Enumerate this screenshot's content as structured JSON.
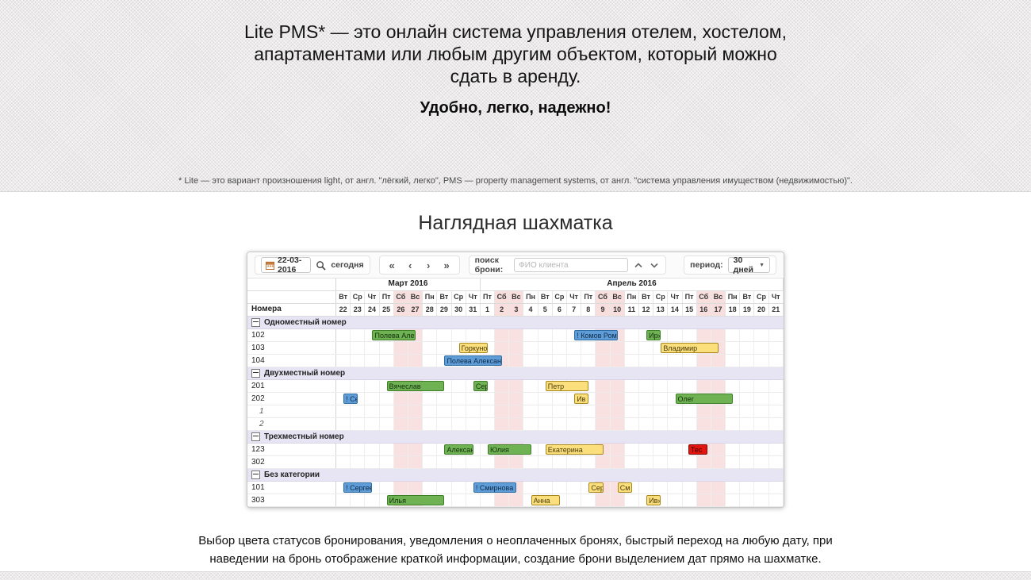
{
  "hero": {
    "title": "Lite PMS* — это онлайн система управления отелем, хостелом, апартаментами или любым другим объектом, который можно сдать в аренду.",
    "slogan": "Удобно, легко, надежно!",
    "footnote": "* Lite — это вариант произношения light, от англ. \"лёгкий, легко\", PMS — property management systems, от англ. \"система управления имуществом (недвижимостью)\"."
  },
  "section": {
    "title": "Наглядная шахматка",
    "description": "Выбор цвета статусов бронирования, уведомления о неоплаченных бронях, быстрый переход на любую дату, при наведении на бронь отображение краткой информации, создание брони выделением дат прямо на шахматке."
  },
  "chessboard": {
    "toolbar": {
      "date_value": "22-03-2016",
      "today_label": "сегодня",
      "nav": [
        "«",
        "‹",
        "›",
        "»"
      ],
      "search_label": "поиск брони:",
      "search_placeholder": "ФИО клиента",
      "period_label": "период:",
      "period_value": "30 дней"
    },
    "rooms_column_header": "Номера",
    "months": [
      {
        "label": "Март 2016",
        "span": 10
      },
      {
        "label": "Апрель 2016",
        "span": 21
      }
    ],
    "days": [
      {
        "d": "Вт",
        "n": "22",
        "w": false
      },
      {
        "d": "Ср",
        "n": "23",
        "w": false
      },
      {
        "d": "Чт",
        "n": "24",
        "w": false
      },
      {
        "d": "Пт",
        "n": "25",
        "w": false
      },
      {
        "d": "Сб",
        "n": "26",
        "w": true
      },
      {
        "d": "Вс",
        "n": "27",
        "w": true
      },
      {
        "d": "Пн",
        "n": "28",
        "w": false
      },
      {
        "d": "Вт",
        "n": "29",
        "w": false
      },
      {
        "d": "Ср",
        "n": "30",
        "w": false
      },
      {
        "d": "Чт",
        "n": "31",
        "w": false
      },
      {
        "d": "Пт",
        "n": "1",
        "w": false
      },
      {
        "d": "Сб",
        "n": "2",
        "w": true
      },
      {
        "d": "Вс",
        "n": "3",
        "w": true
      },
      {
        "d": "Пн",
        "n": "4",
        "w": false
      },
      {
        "d": "Вт",
        "n": "5",
        "w": false
      },
      {
        "d": "Ср",
        "n": "6",
        "w": false
      },
      {
        "d": "Чт",
        "n": "7",
        "w": false
      },
      {
        "d": "Пт",
        "n": "8",
        "w": false
      },
      {
        "d": "Сб",
        "n": "9",
        "w": true
      },
      {
        "d": "Вс",
        "n": "10",
        "w": true
      },
      {
        "d": "Пн",
        "n": "11",
        "w": false
      },
      {
        "d": "Вт",
        "n": "12",
        "w": false
      },
      {
        "d": "Ср",
        "n": "13",
        "w": false
      },
      {
        "d": "Чт",
        "n": "14",
        "w": false
      },
      {
        "d": "Пт",
        "n": "15",
        "w": false
      },
      {
        "d": "Сб",
        "n": "16",
        "w": true
      },
      {
        "d": "Вс",
        "n": "17",
        "w": true
      },
      {
        "d": "Пн",
        "n": "18",
        "w": false
      },
      {
        "d": "Вт",
        "n": "19",
        "w": false
      },
      {
        "d": "Ср",
        "n": "20",
        "w": false
      },
      {
        "d": "Чт",
        "n": "21",
        "w": false
      }
    ],
    "status_colors": {
      "confirmed": {
        "bg": "#6fb253",
        "border": "#3e7f28",
        "text": "#14300c"
      },
      "unpaid": {
        "bg": "#fcdf7d",
        "border": "#a8871f",
        "text": "#4a3a08"
      },
      "new": {
        "bg": "#5f9dd8",
        "border": "#2e6da4",
        "text": "#0f2c49"
      },
      "cancelled": {
        "bg": "#e3150f",
        "border": "#7e0b07",
        "text": "#3a0302"
      }
    },
    "groups": [
      {
        "label": "Одноместный номер",
        "rooms": [
          {
            "name": "102",
            "italic": false,
            "bookings": [
              {
                "label": "Полева Алекс",
                "status": "confirmed",
                "start": 2.5,
                "span": 3
              },
              {
                "label": "! Комов Рома»",
                "status": "new",
                "start": 16.5,
                "span": 3
              },
              {
                "label": "Ир»",
                "status": "confirmed",
                "start": 21.5,
                "span": 1
              }
            ]
          },
          {
            "name": "103",
            "italic": false,
            "bookings": [
              {
                "label": "Горкунов",
                "status": "unpaid",
                "start": 8.5,
                "span": 2
              },
              {
                "label": "Владимир",
                "status": "unpaid",
                "start": 22.5,
                "span": 4
              }
            ]
          },
          {
            "name": "104",
            "italic": false,
            "bookings": [
              {
                "label": "Полева Александр»",
                "status": "new",
                "start": 7.5,
                "span": 4
              }
            ]
          }
        ]
      },
      {
        "label": "Двухместный номер",
        "rooms": [
          {
            "name": "201",
            "italic": false,
            "bookings": [
              {
                "label": "Вячеслав",
                "status": "confirmed",
                "start": 3.5,
                "span": 4
              },
              {
                "label": "Сер",
                "status": "confirmed",
                "start": 9.5,
                "span": 1
              },
              {
                "label": "Петр",
                "status": "unpaid",
                "start": 14.5,
                "span": 3
              }
            ]
          },
          {
            "name": "202",
            "italic": false,
            "bookings": [
              {
                "label": "! Се",
                "status": "new",
                "start": 0.5,
                "span": 1
              },
              {
                "label": "Ив",
                "status": "unpaid",
                "start": 16.5,
                "span": 1
              },
              {
                "label": "Олег",
                "status": "confirmed",
                "start": 23.5,
                "span": 4
              }
            ]
          },
          {
            "name": "1",
            "italic": true,
            "bookings": []
          },
          {
            "name": "2",
            "italic": true,
            "bookings": []
          }
        ]
      },
      {
        "label": "Трехместный номер",
        "rooms": [
          {
            "name": "123",
            "italic": false,
            "bookings": [
              {
                "label": "Алексан»",
                "status": "confirmed",
                "start": 7.5,
                "span": 2
              },
              {
                "label": "Юлия",
                "status": "confirmed",
                "start": 10.5,
                "span": 3
              },
              {
                "label": "Екатерина",
                "status": "unpaid",
                "start": 14.5,
                "span": 4
              },
              {
                "label": "Тес",
                "status": "cancelled",
                "start": 24.4,
                "span": 1.3
              }
            ]
          },
          {
            "name": "302",
            "italic": false,
            "bookings": []
          }
        ]
      },
      {
        "label": "Без категории",
        "rooms": [
          {
            "name": "101",
            "italic": false,
            "bookings": [
              {
                "label": "! Сергее»",
                "status": "new",
                "start": 0.5,
                "span": 2
              },
              {
                "label": "! Смирнова Е»",
                "status": "new",
                "start": 9.5,
                "span": 3
              },
              {
                "label": "Сер",
                "status": "unpaid",
                "start": 17.5,
                "span": 1
              },
              {
                "label": "См",
                "status": "unpaid",
                "start": 19.5,
                "span": 1
              }
            ]
          },
          {
            "name": "303",
            "italic": false,
            "bookings": [
              {
                "label": "Илья",
                "status": "confirmed",
                "start": 3.5,
                "span": 4
              },
              {
                "label": "Анна",
                "status": "unpaid",
                "start": 13.5,
                "span": 2
              },
              {
                "label": "Ив»",
                "status": "unpaid",
                "start": 21.5,
                "span": 1
              }
            ]
          }
        ]
      }
    ]
  }
}
